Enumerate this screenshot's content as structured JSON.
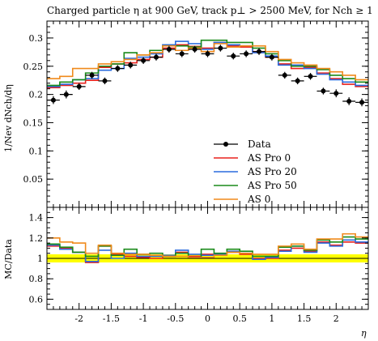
{
  "chart_data": [
    {
      "type": "line",
      "panel": "main",
      "title": "Charged particle η at 900 GeV, track p⊥ > 2500 MeV, for Nch ≥ 1",
      "ylabel": "1/Nev dNch/dη",
      "ylim": [
        0,
        0.33
      ],
      "yticks": [
        0.05,
        0.1,
        0.15,
        0.2,
        0.25,
        0.3
      ],
      "ytick_labels": [
        "0.05",
        "0.1",
        "0.15",
        "0.2",
        "0.25",
        "0.3"
      ],
      "x_edges": [
        -2.5,
        -2.3,
        -2.1,
        -1.9,
        -1.7,
        -1.5,
        -1.3,
        -1.1,
        -0.9,
        -0.7,
        -0.5,
        -0.3,
        -0.1,
        0.1,
        0.3,
        0.5,
        0.7,
        0.9,
        1.1,
        1.3,
        1.5,
        1.7,
        1.9,
        2.1,
        2.3,
        2.5
      ],
      "legend_position": "lower-right",
      "data": {
        "name": "Data",
        "color": "#000000",
        "x": [
          -2.4,
          -2.2,
          -2.0,
          -1.8,
          -1.6,
          -1.4,
          -1.2,
          -1.0,
          -0.8,
          -0.6,
          -0.4,
          -0.2,
          0.0,
          0.2,
          0.4,
          0.6,
          0.8,
          1.0,
          1.2,
          1.4,
          1.6,
          1.8,
          2.0,
          2.2,
          2.4
        ],
        "y": [
          0.19,
          0.2,
          0.214,
          0.234,
          0.224,
          0.246,
          0.252,
          0.26,
          0.266,
          0.28,
          0.272,
          0.28,
          0.272,
          0.282,
          0.268,
          0.272,
          0.276,
          0.266,
          0.234,
          0.224,
          0.232,
          0.206,
          0.202,
          0.188,
          0.186
        ],
        "yerr": [
          0.007,
          0.007,
          0.006,
          0.006,
          0.006,
          0.006,
          0.006,
          0.006,
          0.006,
          0.006,
          0.006,
          0.006,
          0.006,
          0.006,
          0.006,
          0.006,
          0.006,
          0.006,
          0.006,
          0.006,
          0.006,
          0.006,
          0.007,
          0.007,
          0.007
        ]
      },
      "series": [
        {
          "name": "AS Pro 0",
          "color": "#e8211d",
          "values": [
            0.212,
            0.216,
            0.22,
            0.225,
            0.248,
            0.254,
            0.256,
            0.262,
            0.266,
            0.282,
            0.288,
            0.285,
            0.282,
            0.292,
            0.286,
            0.284,
            0.276,
            0.266,
            0.254,
            0.246,
            0.248,
            0.238,
            0.228,
            0.218,
            0.214
          ]
        },
        {
          "name": "AS Pro 20",
          "color": "#2a6bde",
          "values": [
            0.214,
            0.218,
            0.226,
            0.228,
            0.243,
            0.246,
            0.264,
            0.266,
            0.272,
            0.288,
            0.294,
            0.29,
            0.28,
            0.292,
            0.288,
            0.286,
            0.274,
            0.268,
            0.252,
            0.252,
            0.246,
            0.236,
            0.226,
            0.222,
            0.216
          ]
        },
        {
          "name": "AS Pro 50",
          "color": "#1a8a1a",
          "values": [
            0.216,
            0.222,
            0.226,
            0.238,
            0.25,
            0.254,
            0.274,
            0.27,
            0.278,
            0.286,
            0.286,
            0.284,
            0.296,
            0.296,
            0.292,
            0.292,
            0.282,
            0.272,
            0.26,
            0.25,
            0.25,
            0.244,
            0.234,
            0.228,
            0.222
          ]
        },
        {
          "name": "AS 0",
          "color": "#f08a1c",
          "values": [
            0.228,
            0.232,
            0.246,
            0.246,
            0.254,
            0.258,
            0.262,
            0.27,
            0.274,
            0.286,
            0.278,
            0.282,
            0.276,
            0.29,
            0.284,
            0.286,
            0.286,
            0.276,
            0.262,
            0.256,
            0.252,
            0.246,
            0.24,
            0.234,
            0.226
          ]
        }
      ]
    },
    {
      "type": "line",
      "panel": "ratio",
      "ylabel": "MC/Data",
      "xlabel": "η",
      "ylim": [
        0.5,
        1.5
      ],
      "yticks": [
        0.6,
        0.8,
        1.0,
        1.2,
        1.4
      ],
      "ytick_labels": [
        "0.6",
        "0.8",
        "1",
        "1.2",
        "1.4"
      ],
      "xticks": [
        -2,
        -1.5,
        -1,
        -0.5,
        0,
        0.5,
        1,
        1.5,
        2
      ],
      "xtick_labels": [
        "-2",
        "-1.5",
        "-1",
        "-0.5",
        "0",
        "0.5",
        "1",
        "1.5",
        "2"
      ],
      "band": {
        "low": 0.96,
        "high": 1.04,
        "color": "#ffff00"
      },
      "series": [
        {
          "name": "AS Pro 0",
          "color": "#e8211d",
          "values": [
            1.12,
            1.1,
            1.06,
            0.96,
            1.12,
            1.04,
            1.02,
            1.01,
            1.0,
            1.02,
            1.06,
            1.02,
            1.04,
            1.04,
            1.06,
            1.04,
            1.0,
            1.0,
            1.08,
            1.1,
            1.07,
            1.16,
            1.13,
            1.16,
            1.15
          ]
        },
        {
          "name": "AS Pro 20",
          "color": "#2a6bde",
          "values": [
            1.13,
            1.09,
            1.06,
            0.97,
            1.08,
            1.0,
            1.05,
            1.02,
            1.02,
            1.03,
            1.08,
            1.04,
            1.03,
            1.04,
            1.07,
            1.05,
            0.99,
            1.01,
            1.07,
            1.12,
            1.06,
            1.15,
            1.12,
            1.18,
            1.16
          ]
        },
        {
          "name": "AS Pro 50",
          "color": "#1a8a1a",
          "values": [
            1.14,
            1.11,
            1.06,
            1.02,
            1.12,
            1.03,
            1.09,
            1.04,
            1.05,
            1.02,
            1.05,
            1.01,
            1.09,
            1.05,
            1.09,
            1.07,
            1.02,
            1.02,
            1.11,
            1.12,
            1.08,
            1.18,
            1.16,
            1.21,
            1.19
          ]
        },
        {
          "name": "AS 0",
          "color": "#f08a1c",
          "values": [
            1.2,
            1.16,
            1.15,
            1.05,
            1.13,
            1.05,
            1.04,
            1.04,
            1.03,
            1.02,
            1.02,
            1.01,
            1.01,
            1.03,
            1.06,
            1.05,
            1.04,
            1.04,
            1.12,
            1.14,
            1.09,
            1.19,
            1.19,
            1.24,
            1.21
          ]
        }
      ]
    }
  ]
}
